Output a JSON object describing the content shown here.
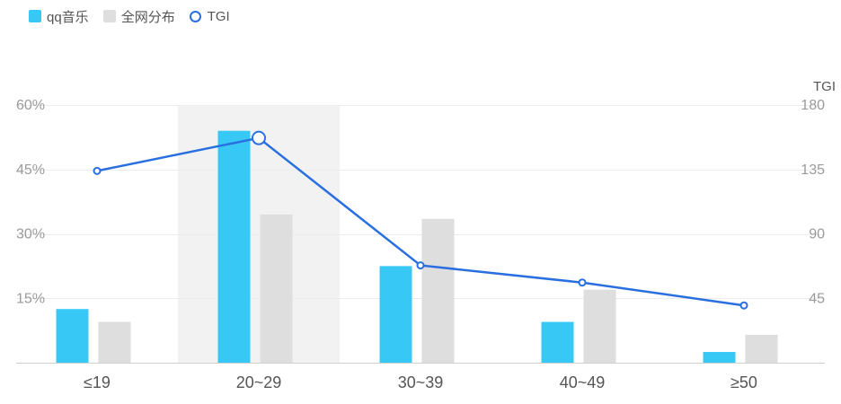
{
  "legend": {
    "items": [
      {
        "label": "qq音乐",
        "color": "#38c8f5",
        "shape": "square"
      },
      {
        "label": "全网分布",
        "color": "#dedede",
        "shape": "square"
      },
      {
        "label": "TGI",
        "color": "#2a6fe0",
        "shape": "circle"
      }
    ]
  },
  "colors": {
    "bar_qq": "#38c8f5",
    "bar_all": "#dedede",
    "line": "#2a6fe0",
    "highlight": "#f2f2f2",
    "grid": "#ececec",
    "axis_text": "#9a9a9a",
    "category_text": "#555555"
  },
  "chart_data": {
    "type": "bar",
    "categories": [
      "≤19",
      "20~29",
      "30~39",
      "40~49",
      "≥50"
    ],
    "series": [
      {
        "name": "qq音乐",
        "type": "bar",
        "axis": "left",
        "values": [
          12.5,
          54,
          22.5,
          9.5,
          2.5
        ]
      },
      {
        "name": "全网分布",
        "type": "bar",
        "axis": "left",
        "values": [
          9.5,
          34.5,
          33.5,
          17,
          6.5
        ]
      },
      {
        "name": "TGI",
        "type": "line",
        "axis": "right",
        "values": [
          134,
          157,
          68,
          56,
          40
        ]
      }
    ],
    "left_axis": {
      "ticks": [
        "15%",
        "30%",
        "45%",
        "60%"
      ],
      "tick_values": [
        15,
        30,
        45,
        60
      ],
      "range": [
        0,
        60
      ]
    },
    "right_axis": {
      "label": "TGI",
      "ticks": [
        "45",
        "90",
        "135",
        "180"
      ],
      "tick_values": [
        45,
        90,
        135,
        180
      ],
      "range": [
        0,
        180
      ]
    },
    "highlighted_category": "20~29",
    "grid": true,
    "legend_position": "top-left"
  }
}
